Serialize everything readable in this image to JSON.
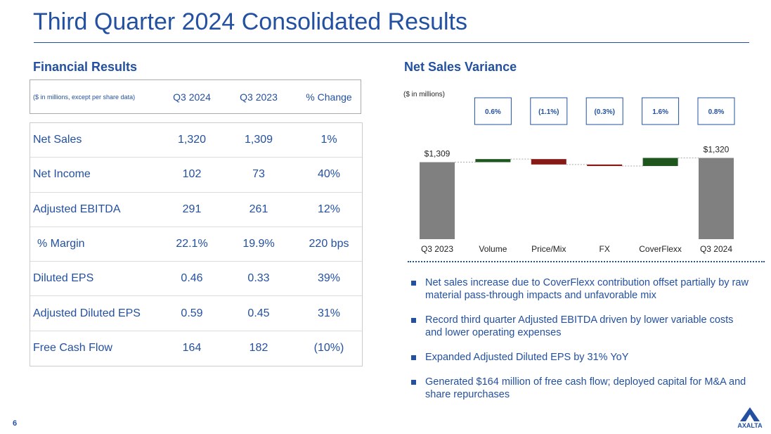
{
  "title": "Third Quarter 2024 Consolidated Results",
  "page_number": "6",
  "logo": "AXALTA",
  "financial": {
    "heading": "Financial Results",
    "table": {
      "header": [
        "($ in millions, except per share data)",
        "Q3 2024",
        "Q3 2023",
        "% Change"
      ],
      "rows": [
        [
          "Net Sales",
          "1,320",
          "1,309",
          "1%"
        ],
        [
          "Net Income",
          "102",
          "73",
          "40%"
        ],
        [
          "Adjusted EBITDA",
          "291",
          "261",
          "12%"
        ],
        [
          "% Margin",
          "22.1%",
          "19.9%",
          "220 bps"
        ],
        [
          "Diluted EPS",
          "0.46",
          "0.33",
          "39%"
        ],
        [
          "Adjusted Diluted EPS",
          "0.59",
          "0.45",
          "31%"
        ],
        [
          "Free Cash Flow",
          "164",
          "182",
          "(10%)"
        ]
      ]
    }
  },
  "chart_data": {
    "type": "waterfall",
    "title": "Net Sales Variance",
    "subtitle": "($ in millions)",
    "categories": [
      "Q3 2023",
      "Volume",
      "Price/Mix",
      "FX",
      "CoverFlexx",
      "Q3 2024"
    ],
    "measures": [
      "absolute",
      "relative",
      "relative",
      "relative",
      "relative",
      "total"
    ],
    "values": [
      1309,
      8,
      -14,
      -4,
      21,
      1320
    ],
    "value_labels": [
      "$1,309",
      null,
      null,
      null,
      null,
      "$1,320"
    ],
    "variance_labels": [
      "0.6%",
      "(1.1%)",
      "(0.3%)",
      "1.6%",
      "0.8%"
    ],
    "colors": {
      "total": "#808080",
      "increase": "#1e561e",
      "decrease": "#861a17"
    },
    "ylim": [
      1110,
      1350
    ]
  },
  "bullets": [
    "Net sales increase due to CoverFlexx contribution offset partially by raw material pass-through impacts and unfavorable mix",
    "Record third quarter Adjusted EBITDA driven by lower variable costs and lower operating expenses",
    "Expanded Adjusted Diluted EPS by 31% YoY",
    "Generated $164 million of free cash flow; deployed capital for M&A and share repurchases"
  ]
}
